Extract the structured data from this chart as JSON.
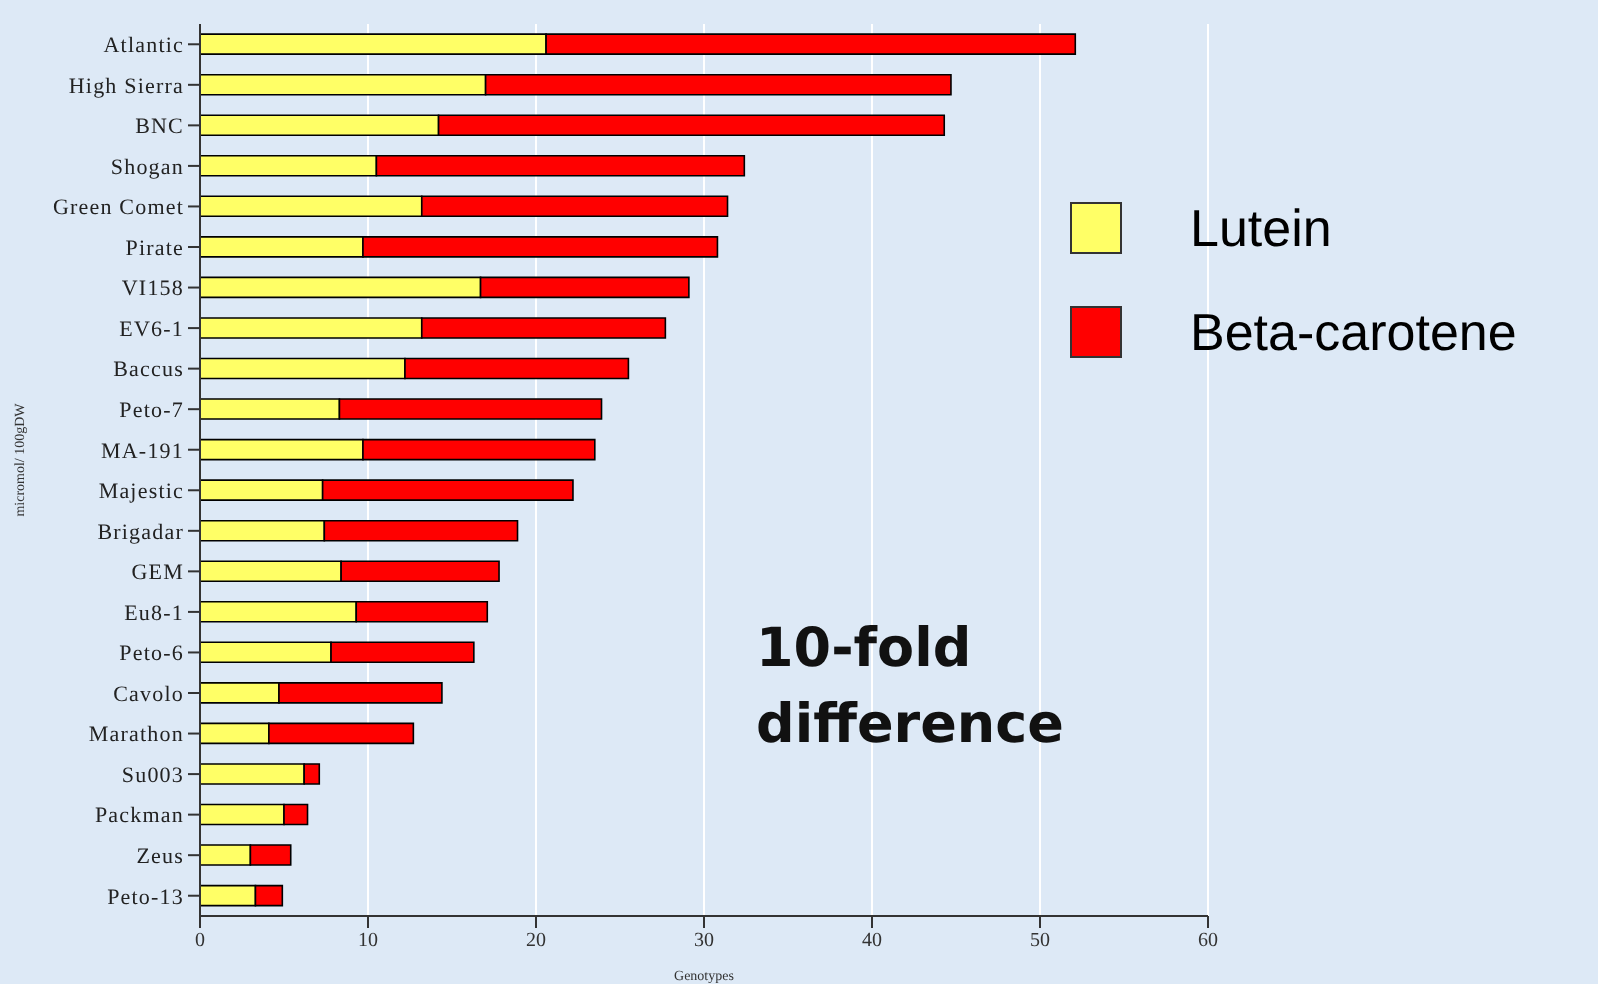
{
  "chart_data": {
    "type": "bar",
    "orientation": "horizontal",
    "stacked": true,
    "xlabel": "Genotypes",
    "ylabel": "micromol/ 100gDW",
    "categories": [
      "Atlantic",
      "High Sierra",
      "BNC",
      "Shogan",
      "Green Comet",
      "Pirate",
      "VI158",
      "EV6-1",
      "Baccus",
      "Peto-7",
      "MA-191",
      "Majestic",
      "Brigadar",
      "GEM",
      "Eu8-1",
      "Peto-6",
      "Cavolo",
      "Marathon",
      "Su003",
      "Packman",
      "Zeus",
      "Peto-13"
    ],
    "series": [
      {
        "name": "Lutein",
        "color": "#ffff66",
        "values": [
          20.6,
          17.0,
          14.2,
          10.5,
          13.2,
          9.7,
          16.7,
          13.2,
          12.2,
          8.3,
          9.7,
          7.3,
          7.4,
          8.4,
          9.3,
          7.8,
          4.7,
          4.1,
          6.2,
          5.0,
          3.0,
          3.3
        ]
      },
      {
        "name": "Beta-carotene",
        "color": "#ff0000",
        "values": [
          31.5,
          27.7,
          30.1,
          21.9,
          18.2,
          21.1,
          12.4,
          14.5,
          13.3,
          15.6,
          13.8,
          14.9,
          11.5,
          9.4,
          7.8,
          8.5,
          9.7,
          8.6,
          0.9,
          1.4,
          2.4,
          1.6
        ]
      }
    ],
    "xlim": [
      0,
      60
    ],
    "xticks": [
      0,
      10,
      20,
      30,
      40,
      50,
      60
    ],
    "grid": "x",
    "legend": "right",
    "annotations": [
      "10-fold difference"
    ]
  }
}
